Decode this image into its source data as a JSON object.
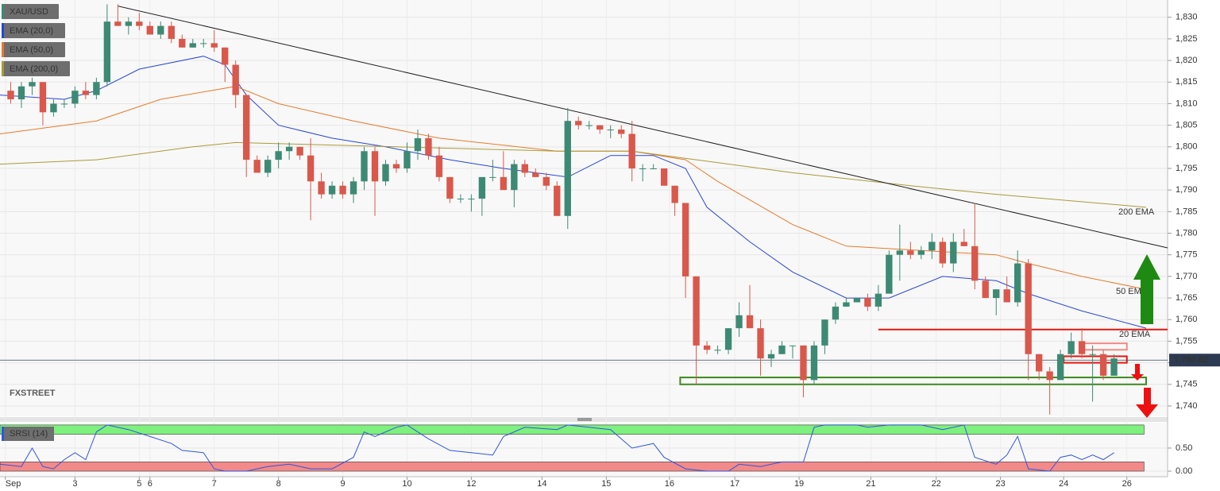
{
  "chart_data": [
    {
      "type": "candlestick",
      "title": "XAU/USD",
      "xlim": [
        -1,
        108
      ],
      "ylim": [
        1737.6,
        1834
      ],
      "grid": true,
      "yticks": [
        {
          "value": 1740,
          "label": "1,740"
        },
        {
          "value": 1745,
          "label": "1,745"
        },
        {
          "value": 1750,
          "label": "1,750"
        },
        {
          "value": 1755,
          "label": "1,755"
        },
        {
          "value": 1760,
          "label": "1,760"
        },
        {
          "value": 1765,
          "label": "1,765"
        },
        {
          "value": 1770,
          "label": "1,770"
        },
        {
          "value": 1775,
          "label": "1,775"
        },
        {
          "value": 1780,
          "label": "1,780"
        },
        {
          "value": 1785,
          "label": "1,785"
        },
        {
          "value": 1790,
          "label": "1,790"
        },
        {
          "value": 1795,
          "label": "1,795"
        },
        {
          "value": 1800,
          "label": "1,800"
        },
        {
          "value": 1805,
          "label": "1,805"
        },
        {
          "value": 1810,
          "label": "1,810"
        },
        {
          "value": 1815,
          "label": "1,815"
        },
        {
          "value": 1820,
          "label": "1,820"
        },
        {
          "value": 1825,
          "label": "1,825"
        },
        {
          "value": 1830,
          "label": "1,830"
        }
      ],
      "up_color": "#3d8a74",
      "down_color": "#d9584b",
      "open": [
        1813,
        1811,
        1814,
        1815,
        1808,
        1810,
        1810,
        1813,
        1812,
        1815,
        1829,
        1828,
        1829,
        1828,
        1826,
        1828,
        1825,
        1823,
        1824,
        1824,
        1823,
        1819,
        1812,
        1797,
        1794,
        1797,
        1799,
        1800,
        1798,
        1792,
        1789,
        1791,
        1789,
        1792,
        1799,
        1792,
        1796,
        1795,
        1799,
        1802,
        1798,
        1793,
        1788,
        1788,
        1788,
        1793,
        1793,
        1790,
        1796,
        1794,
        1793,
        1791,
        1784,
        1806,
        1805,
        1805,
        1804,
        1804,
        1803,
        1795,
        1795,
        1795,
        1791,
        1787,
        1770,
        1754,
        1753,
        1753,
        1758,
        1761,
        1758,
        1751,
        1752,
        1754,
        1754,
        1746,
        1754,
        1760,
        1763,
        1764,
        1765,
        1763,
        1766,
        1775,
        1776,
        1775,
        1776,
        1778,
        1773,
        1778,
        1777,
        1769,
        1765,
        1767,
        1764,
        1773,
        1752,
        1748,
        1746,
        1752,
        1755,
        1752,
        1752,
        1747
      ],
      "high": [
        1815,
        1815,
        1816,
        1815,
        1811,
        1811,
        1814,
        1815,
        1816,
        1833,
        1833,
        1830,
        1831,
        1829,
        1829,
        1829,
        1826,
        1825,
        1825,
        1827,
        1823,
        1820,
        1812,
        1798,
        1798,
        1801,
        1801,
        1800,
        1802,
        1794,
        1792,
        1792,
        1793,
        1800,
        1800,
        1797,
        1797,
        1801,
        1804,
        1803,
        1800,
        1793,
        1789,
        1789,
        1793,
        1797,
        1799,
        1797,
        1797,
        1795,
        1794,
        1792,
        1809,
        1807,
        1806,
        1805,
        1805,
        1805,
        1806,
        1796,
        1796,
        1795,
        1791,
        1787,
        1770,
        1755,
        1754,
        1758,
        1764,
        1768,
        1760,
        1753,
        1755,
        1754,
        1754,
        1755,
        1760,
        1764,
        1765,
        1765,
        1766,
        1768,
        1776,
        1782,
        1778,
        1777,
        1780,
        1779,
        1780,
        1781,
        1787,
        1770,
        1767,
        1770,
        1776,
        1774,
        1752,
        1749,
        1753,
        1757,
        1758,
        1754,
        1753,
        1752
      ],
      "low": [
        1810,
        1809,
        1812,
        1805,
        1807,
        1809,
        1809,
        1811,
        1811,
        1814,
        1828,
        1826,
        1827,
        1826,
        1825,
        1824,
        1823,
        1823,
        1823,
        1822,
        1815,
        1809,
        1793,
        1794,
        1793,
        1795,
        1797,
        1797,
        1783,
        1788,
        1788,
        1788,
        1787,
        1790,
        1784,
        1791,
        1794,
        1794,
        1797,
        1797,
        1792,
        1787,
        1787,
        1785,
        1784,
        1792,
        1790,
        1786,
        1793,
        1793,
        1790,
        1784,
        1781,
        1804,
        1804,
        1803,
        1802,
        1802,
        1792,
        1792,
        1795,
        1791,
        1784,
        1765,
        1745,
        1752,
        1752,
        1752,
        1756,
        1758,
        1747,
        1749,
        1752,
        1751,
        1742,
        1745,
        1752,
        1759,
        1763,
        1764,
        1762,
        1762,
        1766,
        1769,
        1774,
        1774,
        1774,
        1772,
        1771,
        1777,
        1767,
        1765,
        1761,
        1764,
        1763,
        1746,
        1746,
        1738,
        1746,
        1751,
        1751,
        1741,
        1746,
        1747
      ],
      "close": [
        1811,
        1814,
        1815,
        1808,
        1810,
        1810,
        1813,
        1812,
        1815,
        1829,
        1828,
        1829,
        1828,
        1826,
        1828,
        1825,
        1823,
        1824,
        1824,
        1823,
        1819,
        1812,
        1797,
        1794,
        1797,
        1799,
        1800,
        1798,
        1792,
        1789,
        1791,
        1789,
        1792,
        1799,
        1792,
        1796,
        1795,
        1799,
        1802,
        1798,
        1793,
        1788,
        1788,
        1788,
        1793,
        1793,
        1790,
        1796,
        1794,
        1793,
        1791,
        1784,
        1806,
        1805,
        1805,
        1804,
        1804,
        1803,
        1795,
        1795,
        1795,
        1791,
        1787,
        1770,
        1754,
        1753,
        1753,
        1758,
        1761,
        1758,
        1751,
        1752,
        1754,
        1754,
        1746,
        1754,
        1760,
        1763,
        1764,
        1765,
        1763,
        1766,
        1775,
        1776,
        1775,
        1776,
        1778,
        1773,
        1778,
        1777,
        1769,
        1765,
        1767,
        1764,
        1773,
        1752,
        1748,
        1746,
        1752,
        1755,
        1752,
        1752,
        1747,
        1751
      ],
      "overlays": [
        {
          "name": "EMA (20,0)",
          "label": "20 EMA",
          "color": "#2846d8",
          "x": [
            -1,
            5,
            8,
            12,
            18,
            20,
            22,
            25,
            30,
            35,
            41,
            46,
            52,
            56,
            60,
            63,
            65,
            69,
            73,
            78,
            82,
            87,
            92,
            95,
            100,
            106
          ],
          "values": [
            1812,
            1811,
            1813,
            1818,
            1821,
            1819,
            1812,
            1805,
            1802,
            1800,
            1797,
            1795,
            1793,
            1798,
            1798,
            1795,
            1786,
            1778,
            1771,
            1765,
            1765,
            1770,
            1769,
            1766,
            1762,
            1758
          ]
        },
        {
          "name": "EMA (50,0)",
          "label": "50 EMA",
          "color": "#e8792a",
          "x": [
            -1,
            8,
            14,
            21,
            25,
            32,
            40,
            51,
            58,
            63,
            66,
            73,
            78,
            85,
            92,
            95,
            100,
            106
          ],
          "values": [
            1803,
            1806,
            1811,
            1814,
            1810,
            1806,
            1802,
            1799,
            1799,
            1797,
            1792,
            1782,
            1777,
            1776,
            1775,
            1773,
            1770,
            1767
          ]
        },
        {
          "name": "EMA (200,0)",
          "label": "200 EMA",
          "color": "#a89a3a",
          "x": [
            -1,
            8,
            17,
            21,
            36,
            51,
            58,
            64,
            73,
            84,
            92,
            106
          ],
          "values": [
            1796,
            1797,
            1800,
            1801,
            1800,
            1799,
            1799,
            1797,
            1794,
            1791,
            1789,
            1786
          ]
        }
      ],
      "trendline": {
        "x": [
          10,
          108
        ],
        "values": [
          1832.6,
          1776.6
        ],
        "color": "#222222"
      },
      "resistance": {
        "value": 1757.7,
        "x": [
          81,
          108
        ],
        "color": "#e8160c"
      },
      "zones": [
        {
          "ylim": [
            1745,
            1746.6
          ],
          "x": [
            62.5,
            106
          ],
          "color": "#3c8a1c"
        },
        {
          "ylim": [
            1750,
            1751.5
          ],
          "x": [
            98.3,
            104.2
          ],
          "color": "#e8160c"
        },
        {
          "ylim": [
            1753,
            1754.5
          ],
          "x": [
            100,
            104.2
          ],
          "color": "#f08a84"
        }
      ],
      "last_price": {
        "value": 1750.62,
        "label": "1,750.62"
      },
      "watermark": "FXSTREET"
    },
    {
      "type": "line",
      "title": "SRSI (14)",
      "color": "#2f55e0",
      "xlim": [
        -1,
        108
      ],
      "ylim": [
        -0.12,
        1.05
      ],
      "yticks": [
        {
          "value": 0,
          "label": "0.00"
        },
        {
          "value": 0.5,
          "label": "0.50"
        }
      ],
      "bands": [
        {
          "ylim": [
            0.8,
            1
          ],
          "color": "#7ef07e"
        },
        {
          "ylim": [
            0,
            0.2
          ],
          "color": "#f28a8a"
        }
      ],
      "xticks": [
        {
          "value": -0.5,
          "label": "Sep"
        },
        {
          "value": 6,
          "label": "3"
        },
        {
          "value": 12,
          "label": "5"
        },
        {
          "value": 13,
          "label": "6"
        },
        {
          "value": 19,
          "label": "7"
        },
        {
          "value": 25,
          "label": "8"
        },
        {
          "value": 31,
          "label": "9"
        },
        {
          "value": 37,
          "label": "10"
        },
        {
          "value": 43,
          "label": "12"
        },
        {
          "value": 49.6,
          "label": "14"
        },
        {
          "value": 55.6,
          "label": "15"
        },
        {
          "value": 61.5,
          "label": "16"
        },
        {
          "value": 67.6,
          "label": "17"
        },
        {
          "value": 73.6,
          "label": "19"
        },
        {
          "value": 80.3,
          "label": "21"
        },
        {
          "value": 86.4,
          "label": "22"
        },
        {
          "value": 92.4,
          "label": "23"
        },
        {
          "value": 98.3,
          "label": "24"
        },
        {
          "value": 104.2,
          "label": "26"
        }
      ],
      "x": [
        -1,
        1,
        2,
        3,
        4,
        5,
        6,
        7,
        8,
        9,
        11,
        13,
        15,
        16,
        18,
        19,
        20,
        22,
        24,
        26,
        28,
        30,
        32,
        33,
        34,
        36,
        37,
        39,
        41,
        43,
        45,
        46,
        48,
        51,
        52,
        56,
        58,
        60,
        61,
        63,
        65,
        67,
        68,
        70,
        72,
        74,
        75,
        76,
        79,
        80,
        82,
        85,
        87,
        89,
        90,
        92,
        93,
        94,
        95,
        97,
        98,
        99,
        100,
        101,
        102,
        103
      ],
      "values": [
        0.15,
        0.1,
        0.5,
        0.1,
        0.05,
        0.25,
        0.4,
        0.25,
        0.85,
        1.0,
        0.9,
        0.75,
        0.6,
        0.45,
        0.4,
        0.05,
        0,
        0,
        0.1,
        0.15,
        0.05,
        0.05,
        0.3,
        0.85,
        0.75,
        0.95,
        1.0,
        0.7,
        0.45,
        0.4,
        0.35,
        0.75,
        0.95,
        0.9,
        1.0,
        0.9,
        0.5,
        0.6,
        0.3,
        0.05,
        0,
        0,
        0.15,
        0.1,
        0.2,
        0.2,
        0.95,
        1.0,
        1.0,
        0.95,
        1.0,
        1.0,
        0.9,
        1.0,
        0.3,
        0.15,
        0.35,
        0.75,
        0.05,
        0,
        0.3,
        0.35,
        0.25,
        0.35,
        0.25,
        0.4
      ]
    }
  ]
}
